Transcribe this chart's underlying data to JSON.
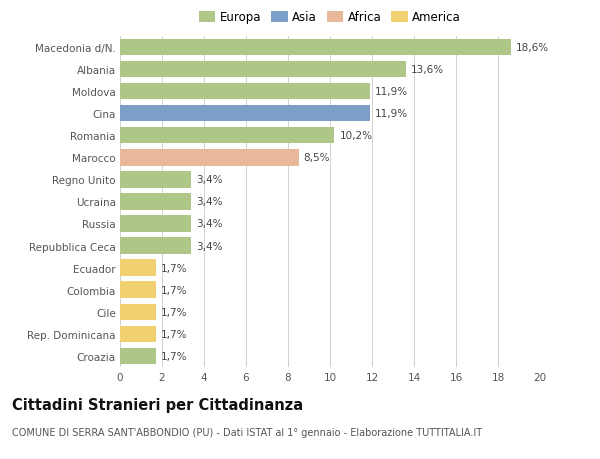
{
  "categories": [
    "Macedonia d/N.",
    "Albania",
    "Moldova",
    "Cina",
    "Romania",
    "Marocco",
    "Regno Unito",
    "Ucraina",
    "Russia",
    "Repubblica Ceca",
    "Ecuador",
    "Colombia",
    "Cile",
    "Rep. Dominicana",
    "Croazia"
  ],
  "values": [
    18.6,
    13.6,
    11.9,
    11.9,
    10.2,
    8.5,
    3.4,
    3.4,
    3.4,
    3.4,
    1.7,
    1.7,
    1.7,
    1.7,
    1.7
  ],
  "bar_colors": [
    "#aec789",
    "#aec789",
    "#aec789",
    "#7b9fc7",
    "#aec789",
    "#e8b89a",
    "#aec789",
    "#aec789",
    "#aec789",
    "#aec789",
    "#f0d070",
    "#f0d070",
    "#f0d070",
    "#f0d070",
    "#aec789"
  ],
  "labels": [
    "18,6%",
    "13,6%",
    "11,9%",
    "11,9%",
    "10,2%",
    "8,5%",
    "3,4%",
    "3,4%",
    "3,4%",
    "3,4%",
    "1,7%",
    "1,7%",
    "1,7%",
    "1,7%",
    "1,7%"
  ],
  "legend": [
    {
      "label": "Europa",
      "color": "#aec789"
    },
    {
      "label": "Asia",
      "color": "#7b9fc7"
    },
    {
      "label": "Africa",
      "color": "#e8b89a"
    },
    {
      "label": "America",
      "color": "#f0d070"
    }
  ],
  "xlim": [
    0,
    20
  ],
  "xticks": [
    0,
    2,
    4,
    6,
    8,
    10,
    12,
    14,
    16,
    18,
    20
  ],
  "title": "Cittadini Stranieri per Cittadinanza",
  "subtitle": "COMUNE DI SERRA SANT'ABBONDIO (PU) - Dati ISTAT al 1° gennaio - Elaborazione TUTTITALIA.IT",
  "background_color": "#ffffff",
  "grid_color": "#d0d0d0",
  "bar_height": 0.75,
  "label_fontsize": 7.5,
  "tick_fontsize": 7.5,
  "legend_fontsize": 8.5,
  "title_fontsize": 10.5,
  "subtitle_fontsize": 7.0
}
